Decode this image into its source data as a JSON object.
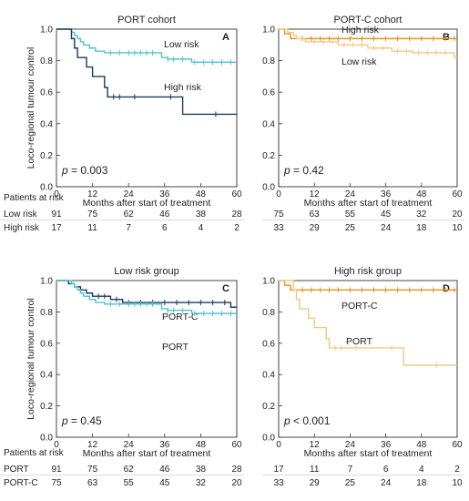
{
  "chart_data": [
    {
      "type": "line",
      "title": "PORT cohort",
      "panel_letter": "A",
      "xlabel": "Months after start of treatment",
      "ylabel": "Loco-regional tumour control",
      "xlim": [
        0,
        60
      ],
      "ylim": [
        0,
        1.0
      ],
      "x_ticks": [
        0,
        12,
        24,
        36,
        48,
        60
      ],
      "y_ticks": [
        0.0,
        0.2,
        0.4,
        0.6,
        0.8,
        1.0
      ],
      "p_label": "p",
      "p_value": "= 0.003",
      "series": [
        {
          "name": "Low risk",
          "color": "#4fc3cf",
          "steps": [
            [
              0,
              1.0
            ],
            [
              5,
              0.98
            ],
            [
              6,
              0.96
            ],
            [
              7,
              0.94
            ],
            [
              8,
              0.92
            ],
            [
              9,
              0.9
            ],
            [
              11,
              0.88
            ],
            [
              13,
              0.86
            ],
            [
              16,
              0.85
            ],
            [
              35,
              0.82
            ],
            [
              37,
              0.81
            ],
            [
              45,
              0.79
            ],
            [
              60,
              0.79
            ]
          ],
          "censors": [
            [
              18,
              0.85
            ],
            [
              21,
              0.85
            ],
            [
              24,
              0.85
            ],
            [
              26,
              0.85
            ],
            [
              28,
              0.85
            ],
            [
              30,
              0.85
            ],
            [
              32,
              0.85
            ],
            [
              37,
              0.81
            ],
            [
              39,
              0.81
            ],
            [
              42,
              0.81
            ],
            [
              46,
              0.79
            ],
            [
              49,
              0.79
            ],
            [
              52,
              0.79
            ],
            [
              55,
              0.79
            ],
            [
              58,
              0.79
            ]
          ]
        },
        {
          "name": "High risk",
          "color": "#1c3b5e",
          "steps": [
            [
              0,
              1.0
            ],
            [
              5,
              0.94
            ],
            [
              6,
              0.88
            ],
            [
              7,
              0.82
            ],
            [
              10,
              0.76
            ],
            [
              12,
              0.7
            ],
            [
              16,
              0.63
            ],
            [
              17,
              0.57
            ],
            [
              42,
              0.46
            ],
            [
              60,
              0.46
            ]
          ],
          "censors": [
            [
              19,
              0.57
            ],
            [
              21,
              0.57
            ],
            [
              26,
              0.57
            ],
            [
              38,
              0.57
            ],
            [
              53,
              0.46
            ]
          ]
        }
      ],
      "risk_table": {
        "header": "Patients at risk",
        "rows": [
          {
            "label": "Low risk",
            "values": [
              "91",
              "75",
              "62",
              "46",
              "38",
              "28"
            ]
          },
          {
            "label": "High risk",
            "values": [
              "17",
              "11",
              "7",
              "6",
              "4",
              "2"
            ]
          }
        ]
      }
    },
    {
      "type": "line",
      "title": "PORT-C cohort",
      "panel_letter": "B",
      "xlabel": "Months after start of treatment",
      "ylabel": "",
      "xlim": [
        0,
        60
      ],
      "ylim": [
        0,
        1.0
      ],
      "x_ticks": [
        0,
        12,
        24,
        36,
        48,
        60
      ],
      "y_ticks": [
        0.0,
        0.2,
        0.4,
        0.6,
        0.8,
        1.0
      ],
      "p_label": "p",
      "p_value": "= 0.42",
      "series": [
        {
          "name": "High risk",
          "color": "#e0951f",
          "steps": [
            [
              0,
              1.0
            ],
            [
              2,
              0.97
            ],
            [
              4,
              0.94
            ],
            [
              60,
              0.94
            ]
          ],
          "censors": [
            [
              8,
              0.94
            ],
            [
              11,
              0.94
            ],
            [
              14,
              0.94
            ],
            [
              17,
              0.94
            ],
            [
              20,
              0.94
            ],
            [
              24,
              0.94
            ],
            [
              28,
              0.94
            ],
            [
              32,
              0.94
            ],
            [
              36,
              0.94
            ],
            [
              40,
              0.94
            ],
            [
              44,
              0.94
            ],
            [
              48,
              0.94
            ],
            [
              52,
              0.94
            ],
            [
              56,
              0.94
            ],
            [
              59,
              0.94
            ]
          ]
        },
        {
          "name": "Low risk",
          "color": "#f3c788",
          "steps": [
            [
              0,
              1.0
            ],
            [
              3,
              0.98
            ],
            [
              5,
              0.96
            ],
            [
              6,
              0.94
            ],
            [
              9,
              0.92
            ],
            [
              20,
              0.9
            ],
            [
              30,
              0.88
            ],
            [
              38,
              0.86
            ],
            [
              45,
              0.85
            ],
            [
              59,
              0.82
            ],
            [
              60,
              0.82
            ]
          ],
          "censors": [
            [
              12,
              0.92
            ],
            [
              15,
              0.92
            ],
            [
              18,
              0.92
            ],
            [
              22,
              0.9
            ],
            [
              25,
              0.9
            ],
            [
              28,
              0.9
            ],
            [
              32,
              0.88
            ],
            [
              35,
              0.88
            ],
            [
              40,
              0.86
            ],
            [
              43,
              0.86
            ],
            [
              47,
              0.85
            ],
            [
              50,
              0.85
            ],
            [
              53,
              0.85
            ],
            [
              56,
              0.85
            ]
          ]
        }
      ],
      "risk_table": {
        "header": "",
        "rows": [
          {
            "label": "",
            "values": [
              "75",
              "63",
              "55",
              "45",
              "32",
              "20"
            ]
          },
          {
            "label": "",
            "values": [
              "33",
              "29",
              "25",
              "24",
              "18",
              "10"
            ]
          }
        ]
      }
    },
    {
      "type": "line",
      "title": "Low risk group",
      "panel_letter": "C",
      "xlabel": "Months after start of treatment",
      "ylabel": "Loco-regional tumour control",
      "xlim": [
        0,
        60
      ],
      "ylim": [
        0,
        1.0
      ],
      "x_ticks": [
        0,
        12,
        24,
        36,
        48,
        60
      ],
      "y_ticks": [
        0.0,
        0.2,
        0.4,
        0.6,
        0.8,
        1.0
      ],
      "p_label": "p",
      "p_value": "= 0.45",
      "series": [
        {
          "name": "PORT-C",
          "color": "#1c3b5e",
          "steps": [
            [
              0,
              1.0
            ],
            [
              4,
              0.98
            ],
            [
              6,
              0.96
            ],
            [
              8,
              0.94
            ],
            [
              10,
              0.92
            ],
            [
              12,
              0.9
            ],
            [
              18,
              0.88
            ],
            [
              22,
              0.86
            ],
            [
              58,
              0.83
            ],
            [
              60,
              0.83
            ]
          ],
          "censors": [
            [
              14,
              0.9
            ],
            [
              16,
              0.9
            ],
            [
              20,
              0.88
            ],
            [
              24,
              0.86
            ],
            [
              28,
              0.86
            ],
            [
              32,
              0.86
            ],
            [
              36,
              0.86
            ],
            [
              40,
              0.86
            ],
            [
              44,
              0.86
            ],
            [
              48,
              0.86
            ],
            [
              52,
              0.86
            ],
            [
              56,
              0.86
            ]
          ]
        },
        {
          "name": "PORT",
          "color": "#4fc3cf",
          "steps": [
            [
              0,
              1.0
            ],
            [
              5,
              0.98
            ],
            [
              6,
              0.96
            ],
            [
              7,
              0.94
            ],
            [
              8,
              0.92
            ],
            [
              9,
              0.9
            ],
            [
              11,
              0.88
            ],
            [
              13,
              0.86
            ],
            [
              16,
              0.85
            ],
            [
              35,
              0.82
            ],
            [
              37,
              0.81
            ],
            [
              45,
              0.79
            ],
            [
              60,
              0.79
            ]
          ],
          "censors": [
            [
              18,
              0.85
            ],
            [
              21,
              0.85
            ],
            [
              24,
              0.85
            ],
            [
              26,
              0.85
            ],
            [
              28,
              0.85
            ],
            [
              30,
              0.85
            ],
            [
              32,
              0.85
            ],
            [
              37,
              0.81
            ],
            [
              39,
              0.81
            ],
            [
              42,
              0.81
            ],
            [
              46,
              0.79
            ],
            [
              49,
              0.79
            ],
            [
              52,
              0.79
            ],
            [
              55,
              0.79
            ],
            [
              58,
              0.79
            ]
          ]
        }
      ],
      "risk_table": {
        "header": "Patients at risk",
        "rows": [
          {
            "label": "PORT",
            "values": [
              "91",
              "75",
              "62",
              "46",
              "38",
              "28"
            ]
          },
          {
            "label": "PORT-C",
            "values": [
              "75",
              "63",
              "55",
              "45",
              "32",
              "20"
            ]
          }
        ]
      }
    },
    {
      "type": "line",
      "title": "High risk group",
      "panel_letter": "D",
      "xlabel": "Months after start of treatment",
      "ylabel": "",
      "xlim": [
        0,
        60
      ],
      "ylim": [
        0,
        1.0
      ],
      "x_ticks": [
        0,
        12,
        24,
        36,
        48,
        60
      ],
      "y_ticks": [
        0.0,
        0.2,
        0.4,
        0.6,
        0.8,
        1.0
      ],
      "p_label": "p",
      "p_value": "< 0.001",
      "series": [
        {
          "name": "PORT-C",
          "color": "#e0951f",
          "steps": [
            [
              0,
              1.0
            ],
            [
              2,
              0.97
            ],
            [
              4,
              0.94
            ],
            [
              60,
              0.94
            ]
          ],
          "censors": [
            [
              8,
              0.94
            ],
            [
              11,
              0.94
            ],
            [
              14,
              0.94
            ],
            [
              17,
              0.94
            ],
            [
              20,
              0.94
            ],
            [
              24,
              0.94
            ],
            [
              28,
              0.94
            ],
            [
              32,
              0.94
            ],
            [
              36,
              0.94
            ],
            [
              40,
              0.94
            ],
            [
              44,
              0.94
            ],
            [
              48,
              0.94
            ],
            [
              52,
              0.94
            ],
            [
              56,
              0.94
            ],
            [
              59,
              0.94
            ]
          ]
        },
        {
          "name": "PORT",
          "color": "#f3c788",
          "steps": [
            [
              0,
              1.0
            ],
            [
              5,
              0.94
            ],
            [
              6,
              0.88
            ],
            [
              7,
              0.82
            ],
            [
              10,
              0.76
            ],
            [
              12,
              0.7
            ],
            [
              16,
              0.63
            ],
            [
              17,
              0.57
            ],
            [
              42,
              0.46
            ],
            [
              60,
              0.46
            ]
          ],
          "censors": [
            [
              19,
              0.57
            ],
            [
              21,
              0.57
            ],
            [
              26,
              0.57
            ],
            [
              38,
              0.57
            ],
            [
              53,
              0.46
            ]
          ]
        }
      ],
      "risk_table": {
        "header": "",
        "rows": [
          {
            "label": "",
            "values": [
              "17",
              "11",
              "7",
              "6",
              "4",
              "2"
            ]
          },
          {
            "label": "",
            "values": [
              "33",
              "29",
              "25",
              "24",
              "18",
              "10"
            ]
          }
        ]
      }
    }
  ]
}
